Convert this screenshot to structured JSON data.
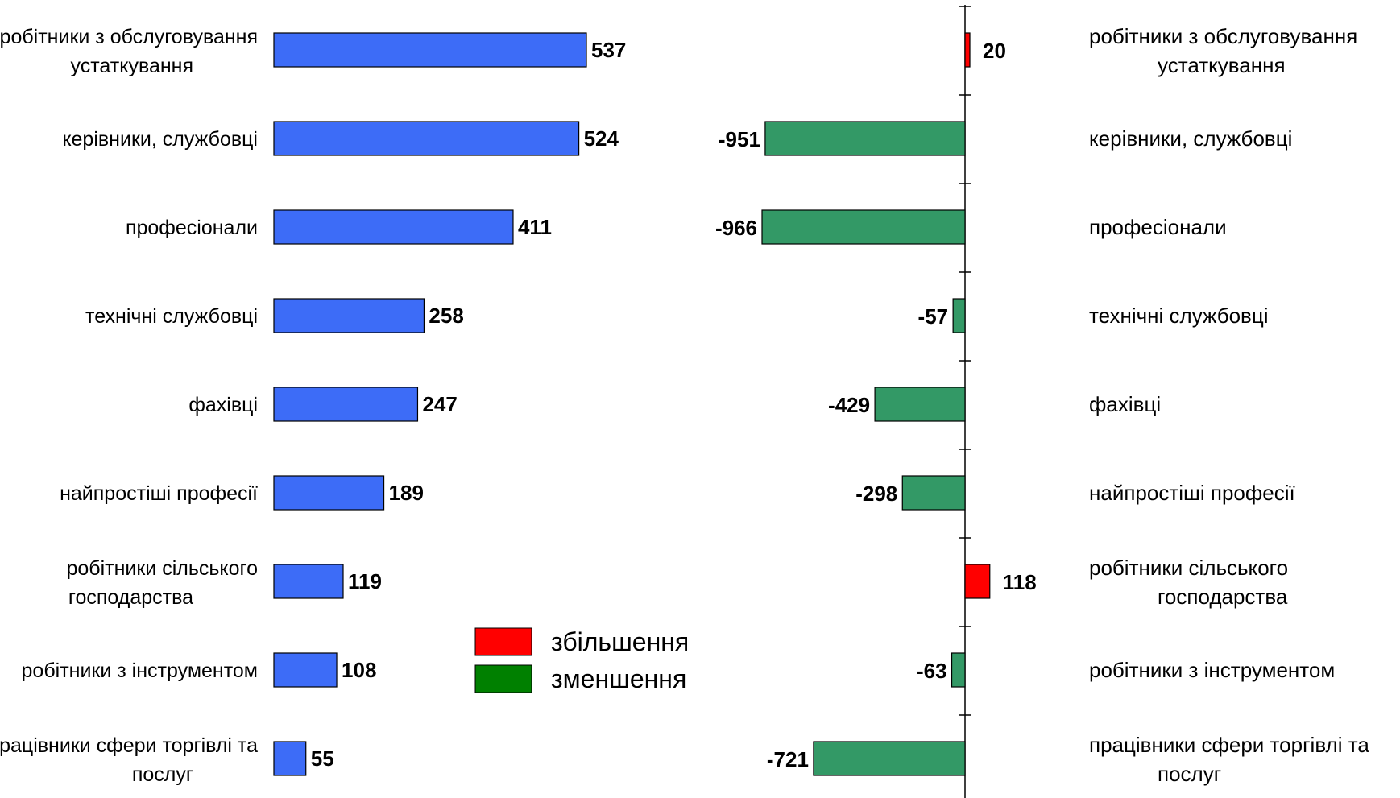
{
  "chart_data": [
    {
      "type": "bar",
      "orientation": "horizontal",
      "categories": [
        "робітники з обслуговування устаткування",
        "керівники, службовці",
        "професіонали",
        "технічні службовці",
        "фахівці",
        "найпростіші професії",
        "робітники сільського господарства",
        "робітники з інструментом",
        "працівники сфери торгівлі та послуг"
      ],
      "values": [
        537,
        524,
        411,
        258,
        247,
        189,
        119,
        108,
        55
      ],
      "xlim": [
        0,
        537
      ],
      "data_labels": true,
      "grid": false,
      "colors": {
        "bar": "#3d6cf7"
      }
    },
    {
      "type": "bar",
      "orientation": "horizontal",
      "categories": [
        "робітники з обслуговування устаткування",
        "керівники, службовці",
        "професіонали",
        "технічні службовці",
        "фахівці",
        "найпростіші професії",
        "робітники сільського господарства",
        "робітники з інструментом",
        "працівники сфери торгівлі та послуг"
      ],
      "values": [
        20,
        -951,
        -966,
        -57,
        -429,
        -298,
        118,
        -63,
        -721
      ],
      "xlim": [
        -966,
        118
      ],
      "data_labels": true,
      "grid": false,
      "legend_position": "left",
      "legend": [
        {
          "label": "збільшення",
          "color": "#ff0000"
        },
        {
          "label": "зменшення",
          "color": "#008000"
        }
      ],
      "colors": {
        "increase": "#ff0000",
        "decrease": "#339966"
      }
    }
  ]
}
